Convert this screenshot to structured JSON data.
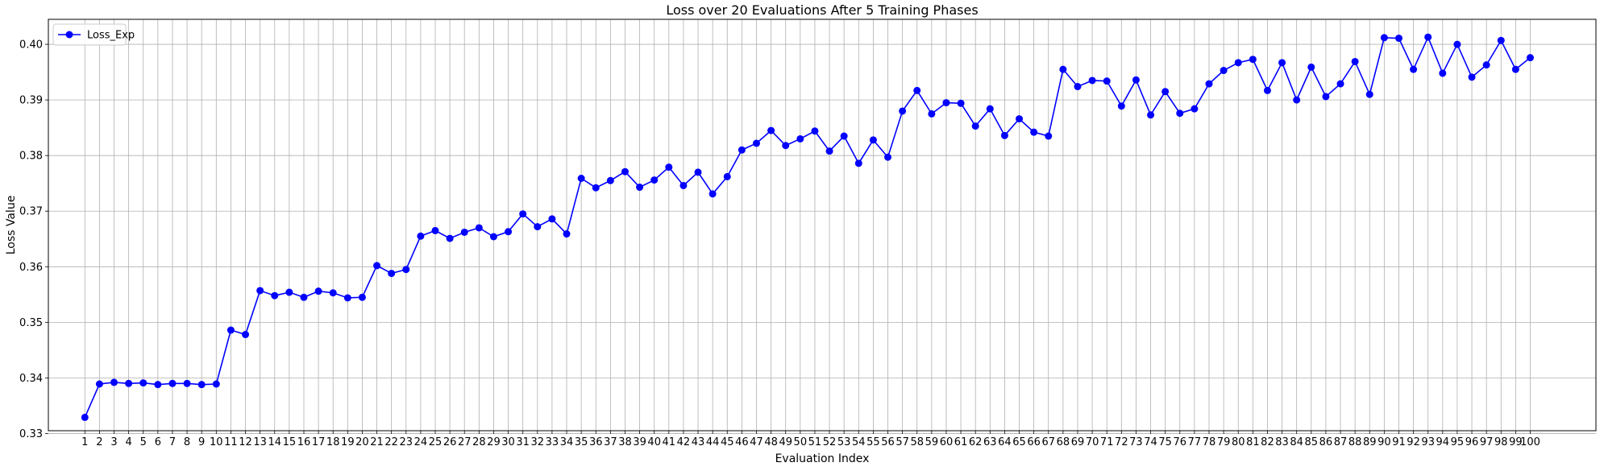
{
  "chart_data": {
    "type": "line",
    "title": "Loss over 20 Evaluations After 5 Training Phases",
    "xlabel": "Evaluation Index",
    "ylabel": "Loss Value",
    "xlim": [
      -1.5,
      104.5
    ],
    "ylim": [
      0.3305,
      0.4045
    ],
    "yticks": [
      0.33,
      0.34,
      0.35,
      0.36,
      0.37,
      0.38,
      0.39,
      0.4
    ],
    "ytick_labels": [
      "0.33",
      "0.34",
      "0.35",
      "0.36",
      "0.37",
      "0.38",
      "0.39",
      "0.40"
    ],
    "grid": true,
    "legend_position": "top-left",
    "x": [
      1,
      2,
      3,
      4,
      5,
      6,
      7,
      8,
      9,
      10,
      11,
      12,
      13,
      14,
      15,
      16,
      17,
      18,
      19,
      20,
      21,
      22,
      23,
      24,
      25,
      26,
      27,
      28,
      29,
      30,
      31,
      32,
      33,
      34,
      35,
      36,
      37,
      38,
      39,
      40,
      41,
      42,
      43,
      44,
      45,
      46,
      47,
      48,
      49,
      50,
      51,
      52,
      53,
      54,
      55,
      56,
      57,
      58,
      59,
      60,
      61,
      62,
      63,
      64,
      65,
      66,
      67,
      68,
      69,
      70,
      71,
      72,
      73,
      74,
      75,
      76,
      77,
      78,
      79,
      80,
      81,
      82,
      83,
      84,
      85,
      86,
      87,
      88,
      89,
      90,
      91,
      92,
      93,
      94,
      95,
      96,
      97,
      98,
      99,
      100
    ],
    "series": [
      {
        "name": "Loss_Exp",
        "color": "#0000ff",
        "marker": "circle",
        "values": [
          0.3329,
          0.3389,
          0.3392,
          0.339,
          0.3391,
          0.3388,
          0.339,
          0.339,
          0.3388,
          0.3389,
          0.3486,
          0.3478,
          0.3557,
          0.3548,
          0.3554,
          0.3545,
          0.3556,
          0.3553,
          0.3544,
          0.3545,
          0.3602,
          0.3588,
          0.3595,
          0.3655,
          0.3665,
          0.3651,
          0.3662,
          0.367,
          0.3654,
          0.3663,
          0.3695,
          0.3672,
          0.3686,
          0.3659,
          0.3759,
          0.3742,
          0.3755,
          0.3771,
          0.3743,
          0.3756,
          0.3779,
          0.3746,
          0.377,
          0.3731,
          0.3762,
          0.381,
          0.3822,
          0.3845,
          0.3818,
          0.383,
          0.3844,
          0.3808,
          0.3835,
          0.3786,
          0.3828,
          0.3797,
          0.388,
          0.3917,
          0.3875,
          0.3895,
          0.3894,
          0.3853,
          0.3884,
          0.3836,
          0.3866,
          0.3842,
          0.3835,
          0.3955,
          0.3924,
          0.3935,
          0.3934,
          0.3889,
          0.3936,
          0.3873,
          0.3915,
          0.3876,
          0.3884,
          0.3929,
          0.3953,
          0.3967,
          0.3973,
          0.3917,
          0.3967,
          0.39,
          0.3959,
          0.3906,
          0.3929,
          0.3969,
          0.391,
          0.4012,
          0.4011,
          0.3955,
          0.4013,
          0.3948,
          0.4,
          0.3941,
          0.3963,
          0.4007,
          0.3955,
          0.3976
        ]
      }
    ]
  }
}
